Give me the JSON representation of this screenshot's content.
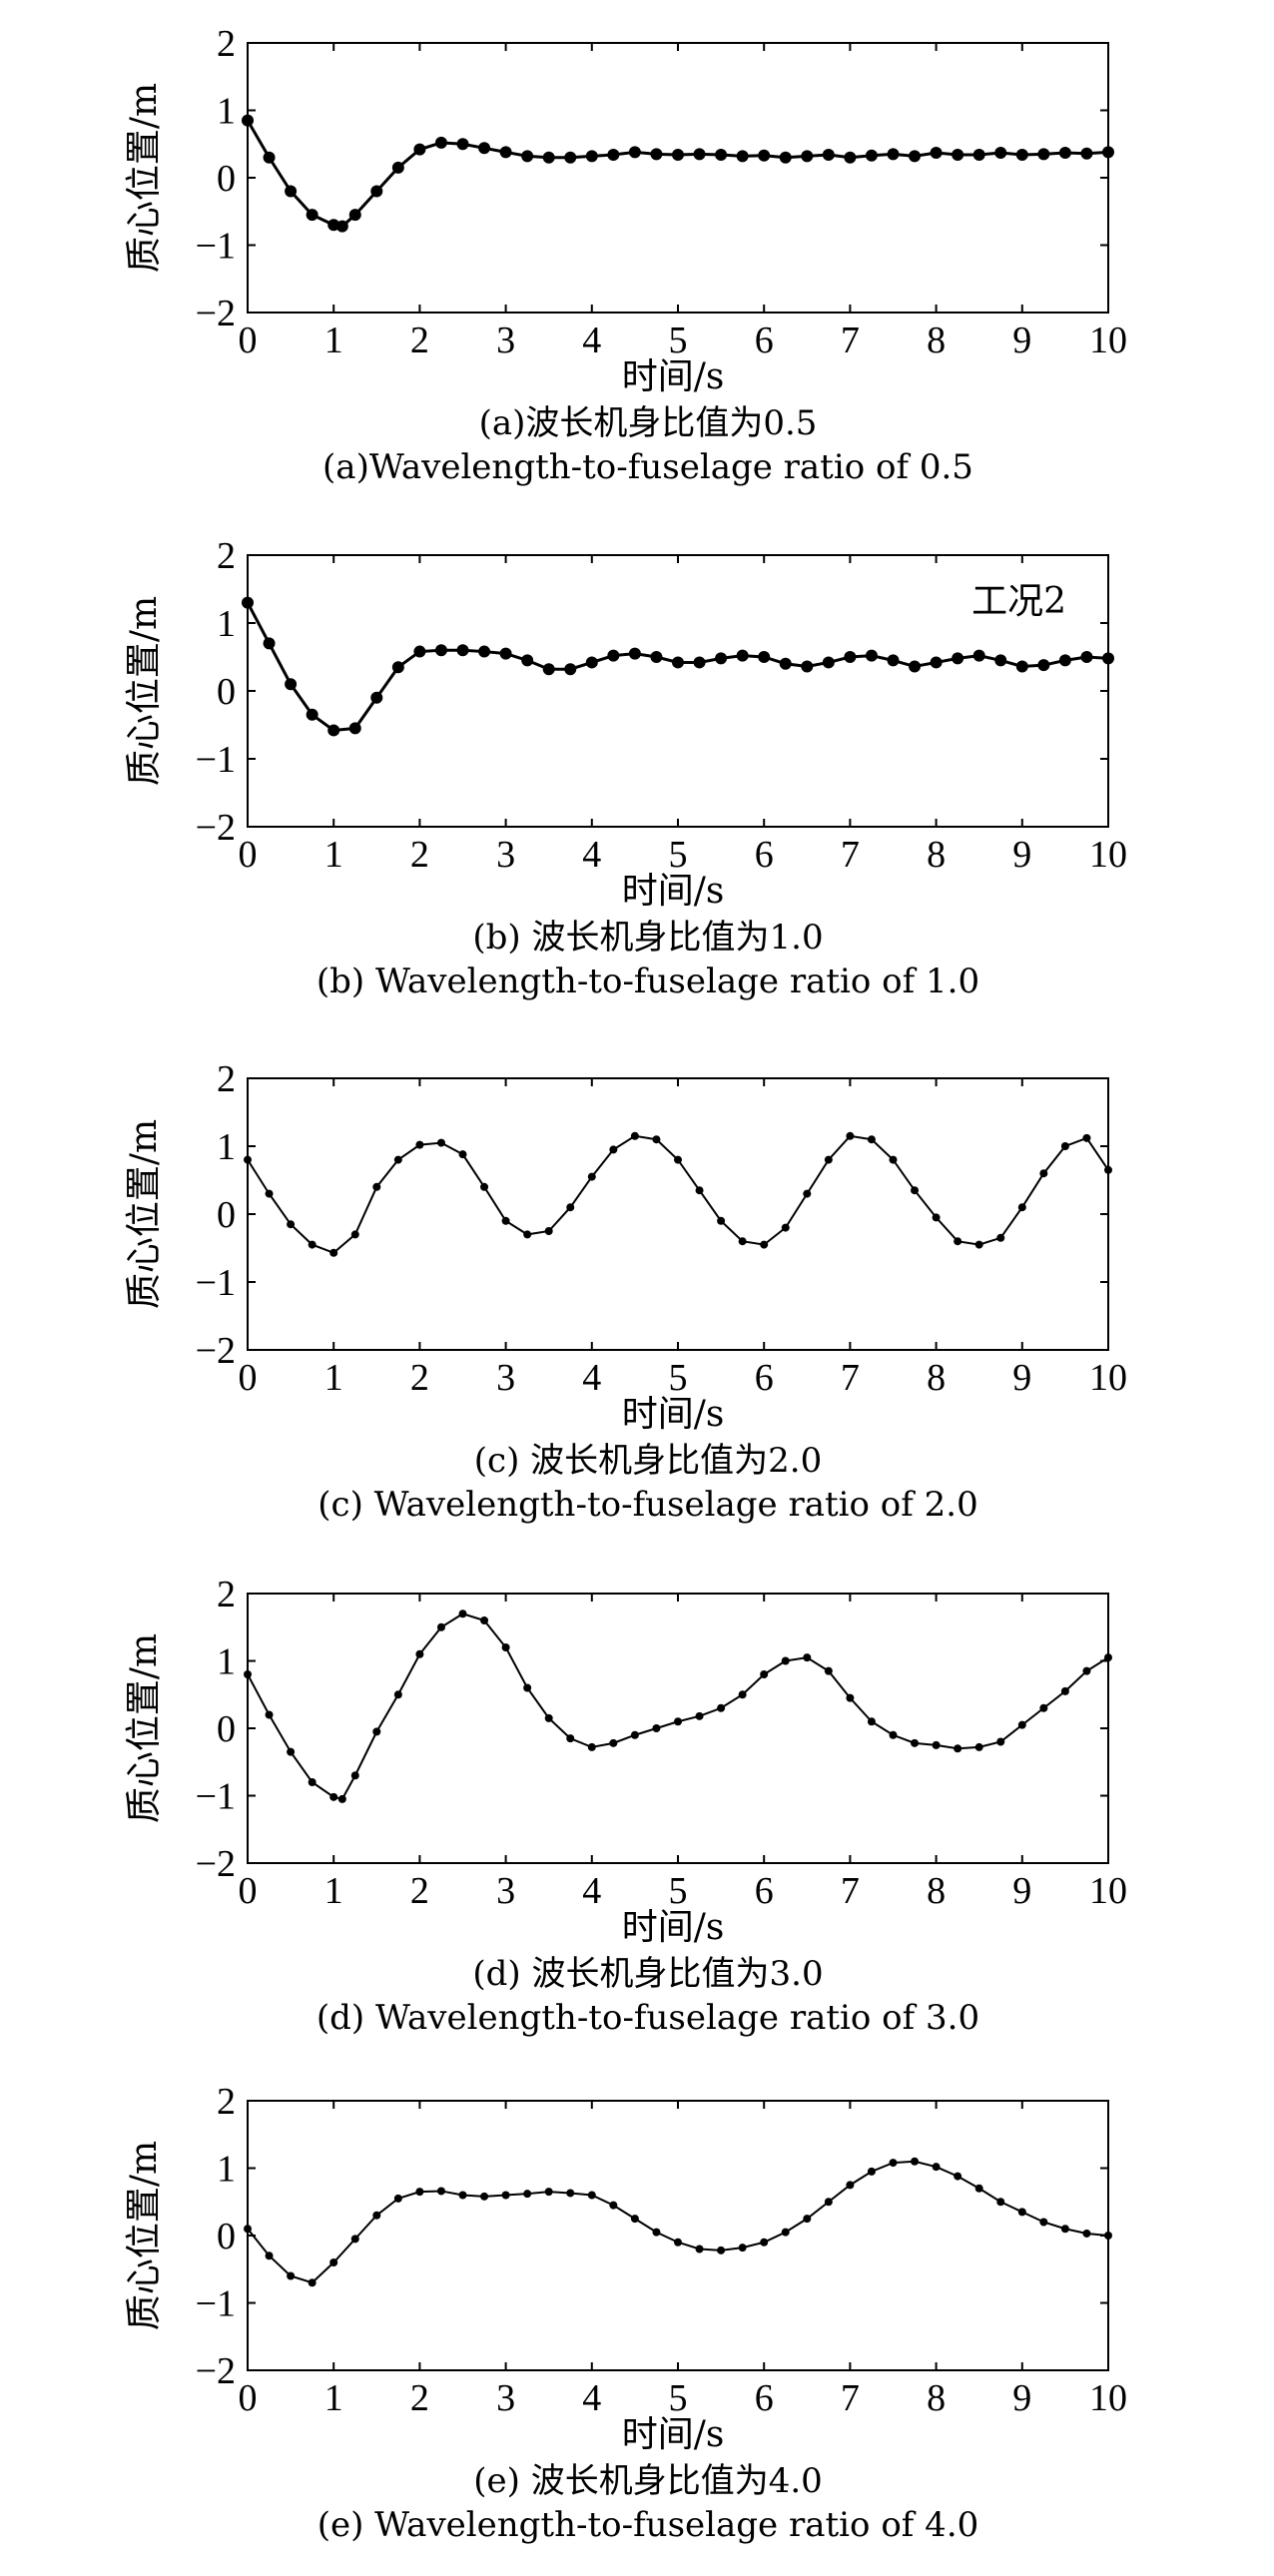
{
  "chart_data": [
    {
      "type": "line",
      "xlabel": "时间/s",
      "ylabel": "质心位置/m",
      "xlim": [
        0,
        10
      ],
      "ylim": [
        -2,
        2
      ],
      "xticks": [
        "0",
        "1",
        "2",
        "3",
        "4",
        "5",
        "6",
        "7",
        "8",
        "9",
        "10"
      ],
      "yticks": [
        "−2",
        "−1",
        "0",
        "1",
        "2"
      ],
      "caption_cn": "(a)波长机身比值为0.5",
      "caption_en": "(a)Wavelength-to-fuselage ratio of 0.5",
      "annotation": "",
      "markers": "filled-circle",
      "x": [
        0,
        0.25,
        0.5,
        0.75,
        1.0,
        1.1,
        1.25,
        1.5,
        1.75,
        2.0,
        2.25,
        2.5,
        2.75,
        3.0,
        3.25,
        3.5,
        3.75,
        4.0,
        4.25,
        4.5,
        4.75,
        5.0,
        5.25,
        5.5,
        5.75,
        6.0,
        6.25,
        6.5,
        6.75,
        7.0,
        7.25,
        7.5,
        7.75,
        8.0,
        8.25,
        8.5,
        8.75,
        9.0,
        9.25,
        9.5,
        9.75,
        10.0
      ],
      "y": [
        0.85,
        0.3,
        -0.2,
        -0.55,
        -0.7,
        -0.72,
        -0.55,
        -0.2,
        0.15,
        0.42,
        0.52,
        0.5,
        0.44,
        0.38,
        0.32,
        0.3,
        0.3,
        0.32,
        0.34,
        0.38,
        0.35,
        0.34,
        0.35,
        0.34,
        0.32,
        0.33,
        0.3,
        0.32,
        0.34,
        0.3,
        0.33,
        0.35,
        0.32,
        0.37,
        0.34,
        0.34,
        0.37,
        0.34,
        0.35,
        0.37,
        0.36,
        0.38
      ]
    },
    {
      "type": "line",
      "xlabel": "时间/s",
      "ylabel": "质心位置/m",
      "xlim": [
        0,
        10
      ],
      "ylim": [
        -2,
        2
      ],
      "xticks": [
        "0",
        "1",
        "2",
        "3",
        "4",
        "5",
        "6",
        "7",
        "8",
        "9",
        "10"
      ],
      "yticks": [
        "−2",
        "−1",
        "0",
        "1",
        "2"
      ],
      "caption_cn": "(b) 波长机身比值为1.0",
      "caption_en": "(b) Wavelength-to-fuselage ratio of 1.0",
      "annotation": "工况2",
      "markers": "filled-circle",
      "x": [
        0,
        0.25,
        0.5,
        0.75,
        1.0,
        1.25,
        1.5,
        1.75,
        2.0,
        2.25,
        2.5,
        2.75,
        3.0,
        3.25,
        3.5,
        3.75,
        4.0,
        4.25,
        4.5,
        4.75,
        5.0,
        5.25,
        5.5,
        5.75,
        6.0,
        6.25,
        6.5,
        6.75,
        7.0,
        7.25,
        7.5,
        7.75,
        8.0,
        8.25,
        8.5,
        8.75,
        9.0,
        9.25,
        9.5,
        9.75,
        10.0
      ],
      "y": [
        1.3,
        0.7,
        0.1,
        -0.35,
        -0.58,
        -0.55,
        -0.1,
        0.35,
        0.58,
        0.6,
        0.6,
        0.58,
        0.55,
        0.45,
        0.32,
        0.32,
        0.42,
        0.52,
        0.55,
        0.5,
        0.42,
        0.42,
        0.48,
        0.52,
        0.5,
        0.4,
        0.36,
        0.42,
        0.5,
        0.52,
        0.45,
        0.36,
        0.42,
        0.48,
        0.52,
        0.45,
        0.36,
        0.38,
        0.45,
        0.5,
        0.48
      ]
    },
    {
      "type": "line",
      "xlabel": "时间/s",
      "ylabel": "质心位置/m",
      "xlim": [
        0,
        10
      ],
      "ylim": [
        -2,
        2
      ],
      "xticks": [
        "0",
        "1",
        "2",
        "3",
        "4",
        "5",
        "6",
        "7",
        "8",
        "9",
        "10"
      ],
      "yticks": [
        "−2",
        "−1",
        "0",
        "1",
        "2"
      ],
      "caption_cn": "(c) 波长机身比值为2.0",
      "caption_en": "(c) Wavelength-to-fuselage ratio of 2.0",
      "annotation": "",
      "markers": "small-dot",
      "x": [
        0,
        0.25,
        0.5,
        0.75,
        1.0,
        1.25,
        1.5,
        1.75,
        2.0,
        2.25,
        2.5,
        2.75,
        3.0,
        3.25,
        3.5,
        3.75,
        4.0,
        4.25,
        4.5,
        4.75,
        5.0,
        5.25,
        5.5,
        5.75,
        6.0,
        6.25,
        6.5,
        6.75,
        7.0,
        7.25,
        7.5,
        7.75,
        8.0,
        8.25,
        8.5,
        8.75,
        9.0,
        9.25,
        9.5,
        9.75,
        10.0
      ],
      "y": [
        0.8,
        0.3,
        -0.15,
        -0.45,
        -0.57,
        -0.3,
        0.4,
        0.8,
        1.02,
        1.05,
        0.88,
        0.4,
        -0.1,
        -0.3,
        -0.25,
        0.1,
        0.55,
        0.95,
        1.15,
        1.1,
        0.8,
        0.35,
        -0.1,
        -0.4,
        -0.45,
        -0.2,
        0.3,
        0.8,
        1.15,
        1.1,
        0.8,
        0.35,
        -0.05,
        -0.4,
        -0.45,
        -0.35,
        0.1,
        0.6,
        1.0,
        1.12,
        0.65
      ]
    },
    {
      "type": "line",
      "xlabel": "时间/s",
      "ylabel": "质心位置/m",
      "xlim": [
        0,
        10
      ],
      "ylim": [
        -2,
        2
      ],
      "xticks": [
        "0",
        "1",
        "2",
        "3",
        "4",
        "5",
        "6",
        "7",
        "8",
        "9",
        "10"
      ],
      "yticks": [
        "−2",
        "−1",
        "0",
        "1",
        "2"
      ],
      "caption_cn": "(d) 波长机身比值为3.0",
      "caption_en": "(d) Wavelength-to-fuselage ratio of 3.0",
      "annotation": "",
      "markers": "small-dot",
      "x": [
        0,
        0.25,
        0.5,
        0.75,
        1.0,
        1.1,
        1.25,
        1.5,
        1.75,
        2.0,
        2.25,
        2.5,
        2.75,
        3.0,
        3.25,
        3.5,
        3.75,
        4.0,
        4.25,
        4.5,
        4.75,
        5.0,
        5.25,
        5.5,
        5.75,
        6.0,
        6.25,
        6.5,
        6.75,
        7.0,
        7.25,
        7.5,
        7.75,
        8.0,
        8.25,
        8.5,
        8.75,
        9.0,
        9.25,
        9.5,
        9.75,
        10.0
      ],
      "y": [
        0.8,
        0.2,
        -0.35,
        -0.8,
        -1.02,
        -1.05,
        -0.7,
        -0.05,
        0.5,
        1.1,
        1.5,
        1.7,
        1.6,
        1.2,
        0.6,
        0.15,
        -0.15,
        -0.28,
        -0.22,
        -0.1,
        0.0,
        0.1,
        0.18,
        0.3,
        0.5,
        0.8,
        1.0,
        1.05,
        0.85,
        0.45,
        0.1,
        -0.1,
        -0.22,
        -0.25,
        -0.3,
        -0.28,
        -0.2,
        0.05,
        0.3,
        0.55,
        0.85,
        1.05
      ]
    },
    {
      "type": "line",
      "xlabel": "时间/s",
      "ylabel": "质心位置/m",
      "xlim": [
        0,
        10
      ],
      "ylim": [
        -2,
        2
      ],
      "xticks": [
        "0",
        "1",
        "2",
        "3",
        "4",
        "5",
        "6",
        "7",
        "8",
        "9",
        "10"
      ],
      "yticks": [
        "−2",
        "−1",
        "0",
        "1",
        "2"
      ],
      "caption_cn": "(e) 波长机身比值为4.0",
      "caption_en": "(e) Wavelength-to-fuselage ratio of 4.0",
      "annotation": "",
      "markers": "small-dot",
      "x": [
        0,
        0.25,
        0.5,
        0.75,
        1.0,
        1.25,
        1.5,
        1.75,
        2.0,
        2.25,
        2.5,
        2.75,
        3.0,
        3.25,
        3.5,
        3.75,
        4.0,
        4.25,
        4.5,
        4.75,
        5.0,
        5.25,
        5.5,
        5.75,
        6.0,
        6.25,
        6.5,
        6.75,
        7.0,
        7.25,
        7.5,
        7.75,
        8.0,
        8.25,
        8.5,
        8.75,
        9.0,
        9.25,
        9.5,
        9.75,
        10.0
      ],
      "y": [
        0.1,
        -0.3,
        -0.6,
        -0.7,
        -0.4,
        -0.05,
        0.3,
        0.55,
        0.65,
        0.66,
        0.6,
        0.58,
        0.6,
        0.62,
        0.65,
        0.63,
        0.6,
        0.45,
        0.25,
        0.05,
        -0.1,
        -0.2,
        -0.22,
        -0.18,
        -0.1,
        0.05,
        0.25,
        0.5,
        0.75,
        0.95,
        1.08,
        1.1,
        1.02,
        0.88,
        0.7,
        0.5,
        0.35,
        0.2,
        0.1,
        0.03,
        0.0
      ]
    }
  ]
}
